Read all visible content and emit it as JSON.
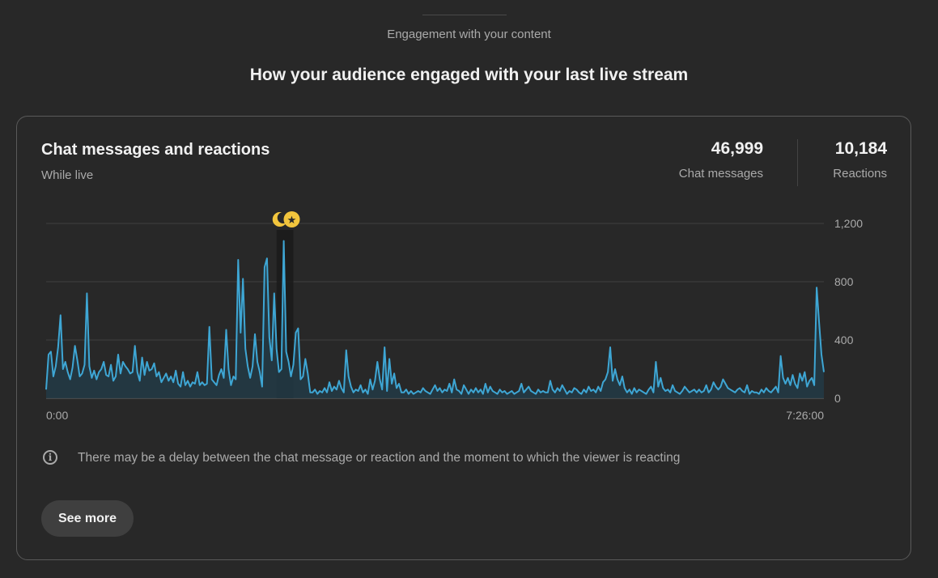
{
  "section": {
    "label": "Engagement with your content",
    "title": "How your audience engaged with your last live stream"
  },
  "card": {
    "title": "Chat messages and reactions",
    "subtitle": "While live",
    "stats": {
      "chat_value": "46,999",
      "chat_label": "Chat messages",
      "reactions_value": "10,184",
      "reactions_label": "Reactions"
    },
    "info_text": "There may be a delay between the chat message or reaction and the moment to which the viewer is reacting",
    "see_more_label": "See more",
    "icons": {
      "info": "info-icon",
      "markers": [
        "moon-marker-icon",
        "star-marker-icon"
      ]
    }
  },
  "chart_data": {
    "type": "area",
    "x_start_label": "0:00",
    "x_end_label": "7:26:00",
    "y_ticks": [
      0,
      400,
      800,
      1200
    ],
    "y_tick_labels": [
      "0",
      "400",
      "800",
      "1,200"
    ],
    "ylim": [
      0,
      1200
    ],
    "grid": true,
    "line_color": "#3ea6d4",
    "fill_color": "#223a45",
    "highlight_markers": [
      {
        "icon": "moon",
        "color": "#f2c53d"
      },
      {
        "icon": "star",
        "color": "#f2c53d"
      }
    ],
    "series": [
      {
        "values": [
          60,
          300,
          320,
          150,
          220,
          350,
          570,
          200,
          250,
          180,
          130,
          210,
          360,
          260,
          150,
          170,
          230,
          720,
          220,
          140,
          190,
          130,
          180,
          200,
          250,
          160,
          150,
          230,
          120,
          150,
          300,
          170,
          250,
          220,
          200,
          170,
          180,
          360,
          180,
          120,
          280,
          160,
          250,
          190,
          200,
          240,
          150,
          180,
          110,
          140,
          170,
          120,
          150,
          110,
          190,
          100,
          80,
          180,
          90,
          120,
          80,
          110,
          100,
          180,
          90,
          110,
          90,
          100,
          490,
          130,
          110,
          90,
          160,
          200,
          140,
          470,
          200,
          90,
          150,
          130,
          950,
          450,
          820,
          340,
          220,
          140,
          220,
          440,
          250,
          180,
          80,
          900,
          960,
          420,
          260,
          720,
          340,
          180,
          200,
          1080,
          320,
          250,
          150,
          230,
          450,
          480,
          130,
          150,
          270,
          170,
          40,
          40,
          60,
          30,
          50,
          40,
          70,
          40,
          110,
          50,
          80,
          60,
          120,
          70,
          40,
          330,
          150,
          80,
          40,
          60,
          50,
          90,
          40,
          60,
          30,
          130,
          60,
          120,
          250,
          130,
          60,
          350,
          50,
          270,
          100,
          170,
          70,
          100,
          40,
          40,
          60,
          30,
          50,
          30,
          40,
          50,
          40,
          70,
          50,
          40,
          30,
          60,
          90,
          50,
          70,
          40,
          60,
          50,
          100,
          40,
          130,
          60,
          50,
          30,
          90,
          60,
          30,
          60,
          40,
          70,
          40,
          60,
          30,
          100,
          40,
          80,
          50,
          40,
          30,
          60,
          40,
          50,
          30,
          40,
          50,
          30,
          40,
          50,
          100,
          40,
          60,
          80,
          50,
          40,
          30,
          60,
          40,
          50,
          40,
          40,
          120,
          60,
          40,
          70,
          50,
          90,
          60,
          30,
          50,
          40,
          70,
          60,
          40,
          30,
          60,
          40,
          80,
          50,
          60,
          40,
          80,
          50,
          110,
          130,
          180,
          350,
          120,
          200,
          130,
          90,
          150,
          70,
          40,
          60,
          30,
          70,
          40,
          60,
          50,
          40,
          30,
          60,
          80,
          40,
          250,
          80,
          140,
          70,
          50,
          60,
          40,
          90,
          50,
          40,
          30,
          50,
          80,
          60,
          40,
          50,
          60,
          40,
          60,
          40,
          50,
          90,
          40,
          60,
          110,
          80,
          60,
          80,
          130,
          100,
          70,
          60,
          50,
          40,
          60,
          70,
          50,
          40,
          90,
          30,
          50,
          40,
          40,
          30,
          60,
          40,
          70,
          50,
          40,
          60,
          80,
          40,
          290,
          140,
          100,
          140,
          90,
          160,
          100,
          70,
          170,
          120,
          180,
          80,
          120,
          140,
          90,
          760,
          520,
          300,
          180
        ]
      }
    ]
  }
}
